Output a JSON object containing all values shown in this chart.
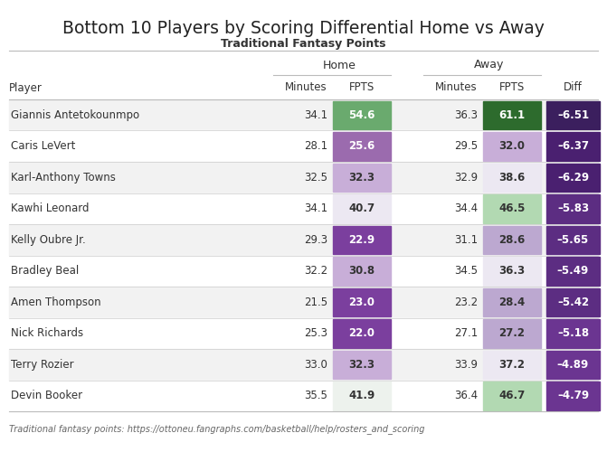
{
  "title": "Bottom 10 Players by Scoring Differential Home vs Away",
  "subtitle": "Traditional Fantasy Points",
  "footnote": "Traditional fantasy points: https://ottoneu.fangraphs.com/basketball/help/rosters_and_scoring",
  "rows": [
    [
      "Giannis Antetokounmpo",
      34.1,
      54.6,
      36.3,
      61.1,
      -6.51
    ],
    [
      "Caris LeVert",
      28.1,
      25.6,
      29.5,
      32.0,
      -6.37
    ],
    [
      "Karl-Anthony Towns",
      32.5,
      32.3,
      32.9,
      38.6,
      -6.29
    ],
    [
      "Kawhi Leonard",
      34.1,
      40.7,
      34.4,
      46.5,
      -5.83
    ],
    [
      "Kelly Oubre Jr.",
      29.3,
      22.9,
      31.1,
      28.6,
      -5.65
    ],
    [
      "Bradley Beal",
      32.2,
      30.8,
      34.5,
      36.3,
      -5.49
    ],
    [
      "Amen Thompson",
      21.5,
      23.0,
      23.2,
      28.4,
      -5.42
    ],
    [
      "Nick Richards",
      25.3,
      22.0,
      27.1,
      27.2,
      -5.18
    ],
    [
      "Terry Rozier",
      33.0,
      32.3,
      33.9,
      37.2,
      -4.89
    ],
    [
      "Devin Booker",
      35.5,
      41.9,
      36.4,
      46.7,
      -4.79
    ]
  ],
  "home_fpts_colors": [
    "#6aaa6e",
    "#9b6bae",
    "#c8aed8",
    "#ece8f2",
    "#7b3f9e",
    "#c8aed8",
    "#7b3f9e",
    "#7b3f9e",
    "#c8aed8",
    "#edf2ed"
  ],
  "away_fpts_colors": [
    "#2d6b2d",
    "#c8aed8",
    "#ece8f2",
    "#b2d9b2",
    "#bca8d0",
    "#ece8f2",
    "#bca8d0",
    "#bca8d0",
    "#ece8f2",
    "#b2d9b2"
  ],
  "diff_colors": [
    "#3b1f5e",
    "#4a2070",
    "#4a2070",
    "#5c2d82",
    "#5c2d82",
    "#5c2d82",
    "#5c2d82",
    "#6b3591",
    "#6b3591",
    "#6b3591"
  ],
  "home_fpts_text_colors": [
    "#ffffff",
    "#ffffff",
    "#333333",
    "#333333",
    "#ffffff",
    "#333333",
    "#ffffff",
    "#ffffff",
    "#333333",
    "#333333"
  ],
  "away_fpts_text_colors": [
    "#ffffff",
    "#333333",
    "#333333",
    "#333333",
    "#333333",
    "#333333",
    "#333333",
    "#333333",
    "#333333",
    "#333333"
  ],
  "diff_text_color": "#ffffff",
  "bg_color": "#ffffff",
  "odd_row_color": "#f2f2f2",
  "even_row_color": "#ffffff",
  "line_color": "#bbbbbb",
  "text_color": "#333333",
  "title_color": "#222222",
  "footnote_color": "#666666"
}
